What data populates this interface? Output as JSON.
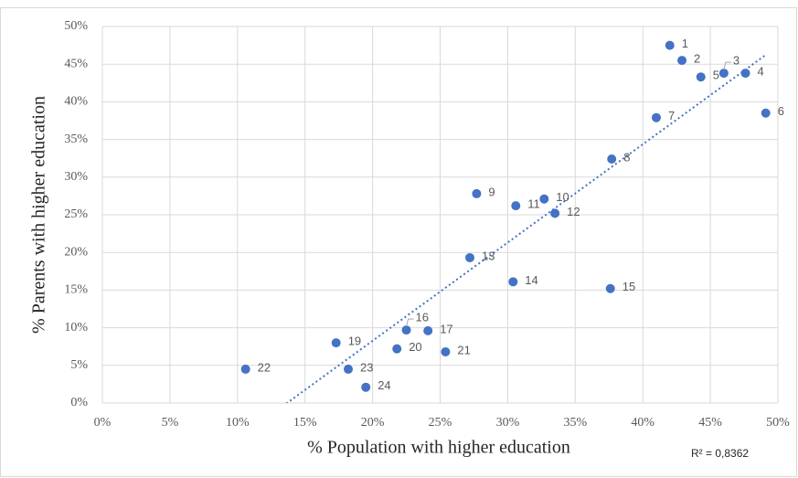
{
  "chart_data": {
    "type": "scatter",
    "x_label": "% Population with higher education",
    "y_label": "% Parents with higher education",
    "x": [
      42.0,
      42.9,
      46.0,
      47.6,
      44.3,
      49.1,
      41.0,
      37.7,
      27.7,
      32.7,
      30.6,
      33.5,
      27.2,
      30.4,
      37.6,
      22.5,
      24.1,
      17.3,
      21.8,
      25.4,
      10.6,
      18.2,
      19.5
    ],
    "values": [
      47.5,
      45.5,
      43.8,
      43.8,
      43.3,
      38.5,
      37.9,
      32.4,
      27.8,
      27.1,
      26.2,
      25.2,
      19.3,
      16.1,
      15.2,
      9.7,
      9.6,
      8.0,
      7.2,
      6.8,
      4.5,
      4.5,
      2.1
    ],
    "point_labels": [
      "1",
      "2",
      "3",
      "4",
      "5",
      "6",
      "7",
      "8",
      "9",
      "10",
      "11",
      "12",
      "13",
      "14",
      "15",
      "16",
      "17",
      "19",
      "20",
      "21",
      "22",
      "23",
      "24"
    ],
    "color": "#4472c4",
    "xlim": [
      0,
      50
    ],
    "ylim": [
      0,
      50
    ],
    "xticks": [
      {
        "value": 0,
        "label": "0%"
      },
      {
        "value": 5,
        "label": "5%"
      },
      {
        "value": 10,
        "label": "10%"
      },
      {
        "value": 15,
        "label": "15%"
      },
      {
        "value": 20,
        "label": "20%"
      },
      {
        "value": 25,
        "label": "25%"
      },
      {
        "value": 30,
        "label": "30%"
      },
      {
        "value": 35,
        "label": "35%"
      },
      {
        "value": 40,
        "label": "40%"
      },
      {
        "value": 45,
        "label": "45%"
      },
      {
        "value": 50,
        "label": "50%"
      }
    ],
    "yticks": [
      {
        "value": 0,
        "label": "0%"
      },
      {
        "value": 5,
        "label": "5%"
      },
      {
        "value": 10,
        "label": "10%"
      },
      {
        "value": 15,
        "label": "15%"
      },
      {
        "value": 20,
        "label": "20%"
      },
      {
        "value": 25,
        "label": "25%"
      },
      {
        "value": 30,
        "label": "30%"
      },
      {
        "value": 35,
        "label": "35%"
      },
      {
        "value": 40,
        "label": "40%"
      },
      {
        "value": 45,
        "label": "45%"
      },
      {
        "value": 50,
        "label": "50%"
      }
    ],
    "grid": true,
    "trendline": true,
    "annotation": "R² = 0,8362"
  }
}
